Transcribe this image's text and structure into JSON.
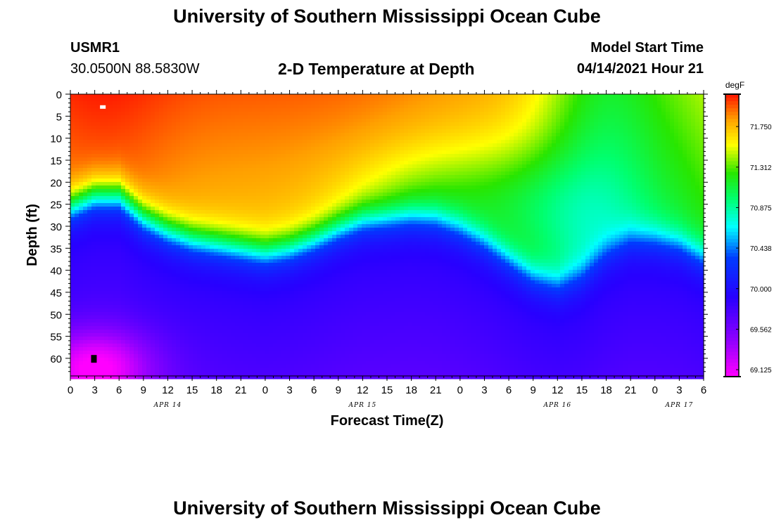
{
  "page": {
    "title_top": "University of Southern Mississippi Ocean Cube",
    "title_bottom": "University of Southern Mississippi Ocean Cube",
    "station_id": "USMR1",
    "coordinates": "30.0500N  88.5830W",
    "model_start_label": "Model Start Time",
    "model_start_value": "04/14/2021 Hour 21"
  },
  "chart_data": {
    "type": "heatmap",
    "title": "2-D Temperature at Depth",
    "xlabel": "Forecast Time(Z)",
    "ylabel": "Depth (ft)",
    "ylim": [
      0,
      64
    ],
    "y_ticks": [
      0,
      5,
      10,
      15,
      20,
      25,
      30,
      35,
      40,
      45,
      50,
      55,
      60
    ],
    "x_hours_range": [
      0,
      78
    ],
    "x_tick_labels": [
      "0",
      "3",
      "6",
      "9",
      "12",
      "15",
      "18",
      "21",
      "0",
      "3",
      "6",
      "9",
      "12",
      "15",
      "18",
      "21",
      "0",
      "3",
      "6",
      "9",
      "12",
      "15",
      "18",
      "21",
      "0",
      "3",
      "6"
    ],
    "date_labels": [
      {
        "hour": 12,
        "label": "APR 14"
      },
      {
        "hour": 36,
        "label": "APR 15"
      },
      {
        "hour": 60,
        "label": "APR 16"
      },
      {
        "hour": 75,
        "label": "APR 17"
      }
    ],
    "colorbar": {
      "unit": "degF",
      "min": 69.05,
      "max": 72.1,
      "tick_values": [
        71.75,
        71.312,
        70.875,
        70.438,
        70.0,
        69.562,
        69.125
      ],
      "tick_labels": [
        "71.750",
        "71.312",
        "70.875",
        "70.438",
        "70.000",
        "69.562",
        "69.125"
      ]
    },
    "thermocline_depth_ft": [
      [
        0,
        25.5
      ],
      [
        3,
        23
      ],
      [
        6,
        23
      ],
      [
        9,
        28
      ],
      [
        12,
        31
      ],
      [
        15,
        33
      ],
      [
        18,
        34
      ],
      [
        21,
        35
      ],
      [
        24,
        36
      ],
      [
        27,
        35
      ],
      [
        30,
        33
      ],
      [
        33,
        30.5
      ],
      [
        36,
        28.5
      ],
      [
        39,
        28
      ],
      [
        42,
        27.5
      ],
      [
        45,
        28
      ],
      [
        48,
        30
      ],
      [
        51,
        33
      ],
      [
        54,
        37
      ],
      [
        57,
        41
      ],
      [
        60,
        43
      ],
      [
        63,
        41
      ],
      [
        66,
        36
      ],
      [
        69,
        33
      ],
      [
        72,
        33
      ],
      [
        75,
        34
      ],
      [
        78,
        37
      ]
    ],
    "annotations": [
      "white marker near hour 4, depth 3 ft",
      "black marker near hour 3, depth 60 ft"
    ]
  }
}
